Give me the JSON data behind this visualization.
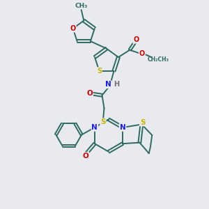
{
  "background_color": "#e8eaf0",
  "bond_color": "#2d6b5e",
  "atom_colors": {
    "S": "#c8b400",
    "N": "#1a1aff",
    "O": "#cc0000",
    "H": "#707070",
    "C_label": "#2d6b5e"
  },
  "figsize": [
    3.0,
    3.0
  ],
  "dpi": 100
}
